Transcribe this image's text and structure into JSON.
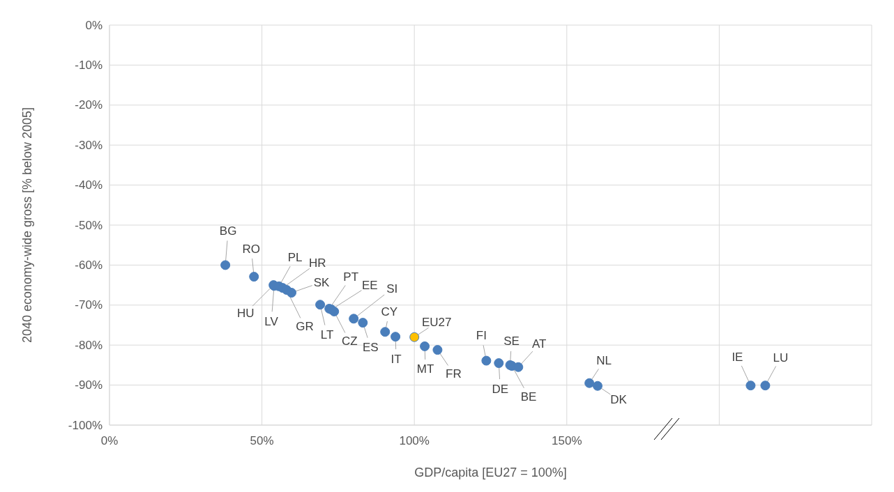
{
  "chart_data": {
    "type": "scatter",
    "xlabel": "GDP/capita [EU27 = 100%]",
    "ylabel": "2040 economy-wide gross [% below 2005]",
    "xlim": [
      0,
      250
    ],
    "ylim": [
      -100,
      0
    ],
    "xticks": [
      {
        "value": 0,
        "label": "0%"
      },
      {
        "value": 50,
        "label": "50%"
      },
      {
        "value": 100,
        "label": "100%"
      },
      {
        "value": 150,
        "label": "150%"
      },
      {
        "value": 200,
        "label": null
      },
      {
        "value": 250,
        "label": null
      }
    ],
    "yticks": [
      {
        "value": 0,
        "label": "0%"
      },
      {
        "value": -10,
        "label": "-10%"
      },
      {
        "value": -20,
        "label": "-20%"
      },
      {
        "value": -30,
        "label": "-30%"
      },
      {
        "value": -40,
        "label": "-40%"
      },
      {
        "value": -50,
        "label": "-50%"
      },
      {
        "value": -60,
        "label": "-60%"
      },
      {
        "value": -70,
        "label": "-70%"
      },
      {
        "value": -80,
        "label": "-80%"
      },
      {
        "value": -90,
        "label": "-90%"
      },
      {
        "value": -100,
        "label": "-100%"
      }
    ],
    "grid": true,
    "marker": "circle",
    "series": [
      {
        "x": [
          38.0,
          47.4,
          53.8,
          54.0,
          55.6,
          56.8,
          58.1,
          59.7,
          69.1,
          72.1,
          73.7,
          72.8,
          80.1,
          83.1,
          90.4,
          93.8,
          100,
          103.4,
          107.6,
          123.6,
          127.7,
          131.4,
          132.0,
          134.1,
          157.4,
          160.1,
          210.3,
          215.1
        ],
        "values": [
          -60,
          -62.9,
          -65.0,
          -65.2,
          -65.3,
          -65.7,
          -66.2,
          -66.9,
          -69.9,
          -70.9,
          -71.6,
          -71.1,
          -73.4,
          -74.4,
          -76.7,
          -77.9,
          -78,
          -80.3,
          -81.2,
          -83.9,
          -84.5,
          -85.0,
          -85.2,
          -85.5,
          -89.5,
          -90.2,
          -90.1,
          -90.1
        ],
        "value_labels": [
          "BG",
          "RO",
          "HU",
          "LV",
          "PL",
          "HR",
          "GR",
          "SK",
          "LT",
          "PT",
          "CZ",
          "EE",
          "SI",
          "ES",
          "CY",
          "IT",
          "EU27",
          "MT",
          "FR",
          "FI",
          "DE",
          "SE",
          "BE",
          "AT",
          "NL",
          "DK",
          "IE",
          "LU"
        ],
        "colors": [
          "#4a7ebb",
          "#4a7ebb",
          "#4a7ebb",
          "#4a7ebb",
          "#4a7ebb",
          "#4a7ebb",
          "#4a7ebb",
          "#4a7ebb",
          "#4a7ebb",
          "#4a7ebb",
          "#4a7ebb",
          "#4a7ebb",
          "#4a7ebb",
          "#4a7ebb",
          "#4a7ebb",
          "#4a7ebb",
          "#ffc000",
          "#4a7ebb",
          "#4a7ebb",
          "#4a7ebb",
          "#4a7ebb",
          "#4a7ebb",
          "#4a7ebb",
          "#4a7ebb",
          "#4a7ebb",
          "#4a7ebb",
          "#4a7ebb",
          "#4a7ebb"
        ]
      }
    ]
  }
}
